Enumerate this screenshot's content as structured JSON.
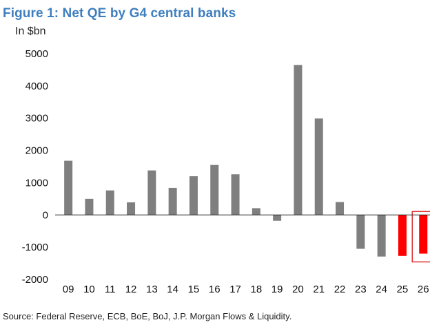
{
  "title": "Figure 1: Net QE by G4 central banks",
  "unit_label": "In $bn",
  "source": "Source: Federal Reserve, ECB, BoE, BoJ, J.P. Morgan Flows & Liquidity.",
  "colors": {
    "bar": "#7f7f7f",
    "projection": "#ff0000",
    "highlight_box": "#e03030",
    "title": "#3f7fbf"
  },
  "chart_data": {
    "type": "bar",
    "title": "Figure 1: Net QE by G4 central banks",
    "ylabel": "In $bn",
    "xlabel": "",
    "ylim": [
      -2000,
      5000
    ],
    "yticks": [
      5000,
      4000,
      3000,
      2000,
      1000,
      0,
      -1000,
      -2000
    ],
    "grid": false,
    "categories": [
      "09",
      "10",
      "11",
      "12",
      "13",
      "14",
      "15",
      "16",
      "17",
      "18",
      "19",
      "20",
      "21",
      "22",
      "23",
      "24",
      "25",
      "26"
    ],
    "values": [
      1680,
      500,
      760,
      390,
      1380,
      840,
      1200,
      1550,
      1260,
      210,
      -180,
      4650,
      2990,
      400,
      -1050,
      -1290,
      -1270,
      -1200
    ],
    "highlighted_categories": [
      "25",
      "26"
    ],
    "boxed_category": "26"
  }
}
